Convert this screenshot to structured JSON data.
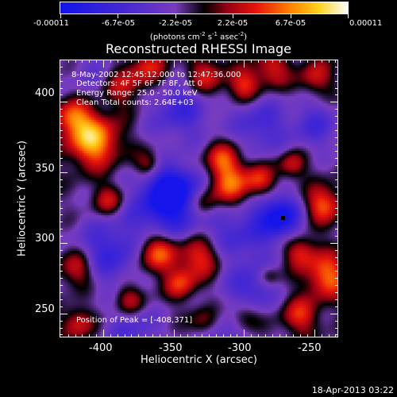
{
  "colorbar": {
    "labels": [
      "-0.00011",
      "-6.7e-05",
      "-2.2e-05",
      "2.2e-05",
      "6.7e-05",
      "0.00011"
    ],
    "units_text": "(photons cm",
    "units_exp1": "-2",
    "units_mid": " s",
    "units_exp2": "-1",
    "units_end": " asec",
    "units_exp3": "-2",
    "units_close": ")"
  },
  "title": "Reconstructed RHESSI Image",
  "annotations": {
    "time_range": "8-May-2002 12:45:12.000 to 12:47:36.000",
    "detectors": "Detectors: 4F 5F 6F 7F 8F, Att 0",
    "energy": "Energy Range: 25.0 - 50.0 keV",
    "clean": "Clean    Total counts: 2.64E+03",
    "peak": "Position of Peak = [-408,371]"
  },
  "axes": {
    "xlabel": "Heliocentric X (arcsec)",
    "ylabel": "Heliocentric Y (arcsec)",
    "x_ticks": [
      "-400",
      "-350",
      "-300",
      "-250"
    ],
    "y_ticks": [
      "400",
      "350",
      "300",
      "250"
    ],
    "xlim": [
      -431,
      -233
    ],
    "ylim": [
      233,
      430
    ]
  },
  "footer": "18-Apr-2013 03:22",
  "colors": {
    "background": "#000000",
    "foreground": "#ffffff"
  }
}
